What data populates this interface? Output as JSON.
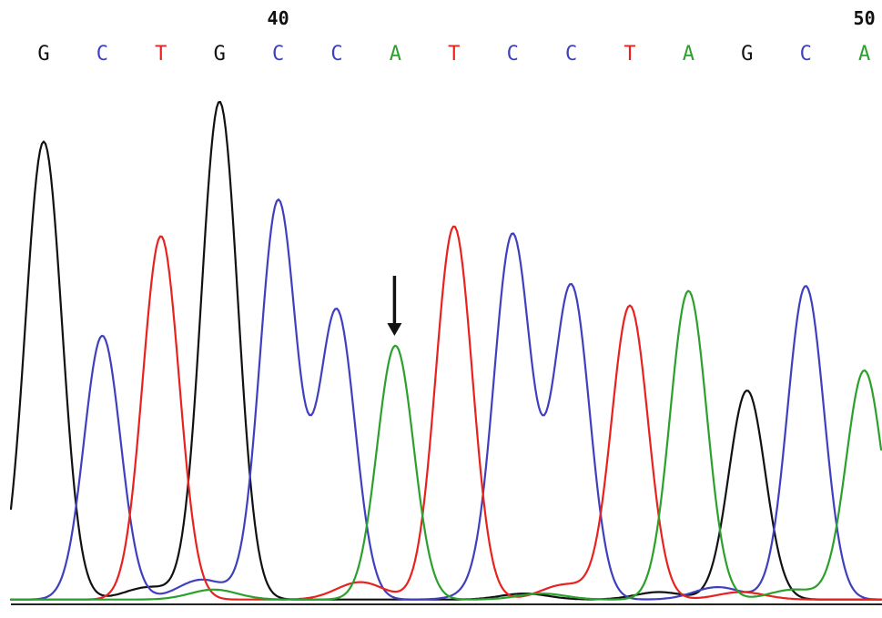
{
  "chart_data": {
    "type": "line",
    "title": "",
    "xlabel": "",
    "ylabel": "",
    "position_markers": [
      {
        "position": 40,
        "label": "40"
      },
      {
        "position": 50,
        "label": "50"
      }
    ],
    "bases": [
      "G",
      "C",
      "T",
      "G",
      "C",
      "C",
      "A",
      "T",
      "C",
      "C",
      "T",
      "A",
      "G",
      "C",
      "A"
    ],
    "base_positions": [
      36,
      37,
      38,
      39,
      40,
      41,
      42,
      43,
      44,
      45,
      46,
      47,
      48,
      49,
      50
    ],
    "colors": {
      "A": "#2ca02c",
      "C": "#3f3fbf",
      "G": "#111111",
      "T": "#e8221f"
    },
    "series": [
      {
        "name": "G",
        "peaks": [
          {
            "position": 36,
            "height": 0.92
          },
          {
            "position": 39,
            "height": 1.0
          },
          {
            "position": 48,
            "height": 0.42
          }
        ]
      },
      {
        "name": "C",
        "peaks": [
          {
            "position": 37,
            "height": 0.53
          },
          {
            "position": 40,
            "height": 0.8
          },
          {
            "position": 41,
            "height": 0.58
          },
          {
            "position": 44,
            "height": 0.72
          },
          {
            "position": 45,
            "height": 0.63
          },
          {
            "position": 49,
            "height": 0.63
          }
        ]
      },
      {
        "name": "T",
        "peaks": [
          {
            "position": 38,
            "height": 0.73
          },
          {
            "position": 43,
            "height": 0.75
          },
          {
            "position": 46,
            "height": 0.59
          }
        ]
      },
      {
        "name": "A",
        "peaks": [
          {
            "position": 42,
            "height": 0.51
          },
          {
            "position": 47,
            "height": 0.62
          },
          {
            "position": 50,
            "height": 0.46
          }
        ]
      }
    ],
    "annotation": {
      "type": "arrow",
      "position": 42,
      "description": "points to A peak"
    }
  }
}
